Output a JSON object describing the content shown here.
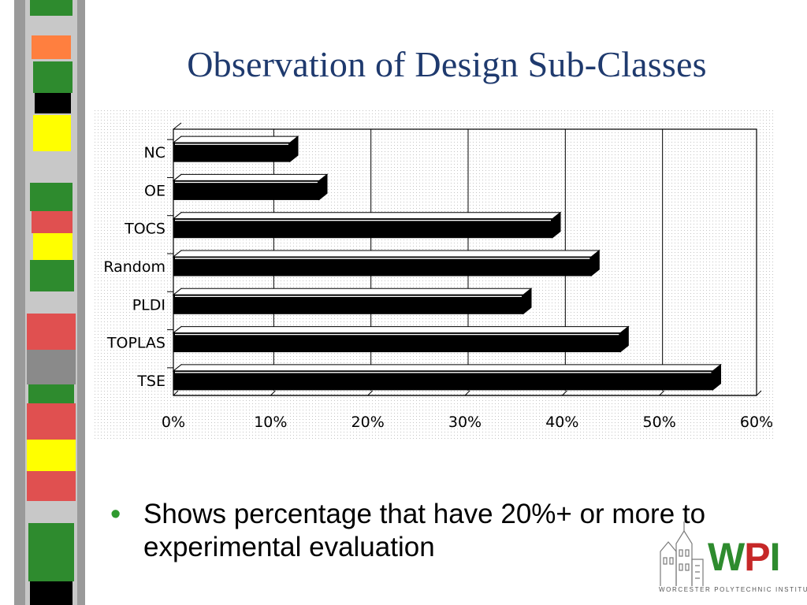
{
  "slide": {
    "title": "Observation of Design Sub-Classes",
    "bullet": "Shows percentage that have 20%+ or more to experimental evaluation"
  },
  "logo": {
    "text": "WPI",
    "letters": [
      "W",
      "P",
      "I"
    ],
    "subtitle": "WORCESTER POLYTECHNIC INSTITUTE",
    "colors": {
      "green": "#2e8b2e",
      "red": "#c62828"
    }
  },
  "colors": {
    "title": "#1f3a6e",
    "bullet": "#2f9a2f",
    "bar": "#000000"
  },
  "stripe_colors": [
    "#2e8b2e",
    "#ff7f3f",
    "#000000",
    "#ffff00",
    "#8a8a8a",
    "#e05050",
    "#c8c8c8"
  ],
  "chart_data": {
    "type": "bar",
    "orientation": "horizontal",
    "style": "3d",
    "categories": [
      "NC",
      "OE",
      "TOCS",
      "Random",
      "PLDI",
      "TOPLAS",
      "TSE"
    ],
    "values": [
      12,
      15,
      39,
      43,
      36,
      46,
      55.5
    ],
    "xlim": [
      0,
      60
    ],
    "xticks": [
      "0%",
      "10%",
      "20%",
      "30%",
      "40%",
      "50%",
      "60%"
    ],
    "title": "",
    "xlabel": "",
    "ylabel": "",
    "grid": "vertical",
    "legend": "none"
  }
}
